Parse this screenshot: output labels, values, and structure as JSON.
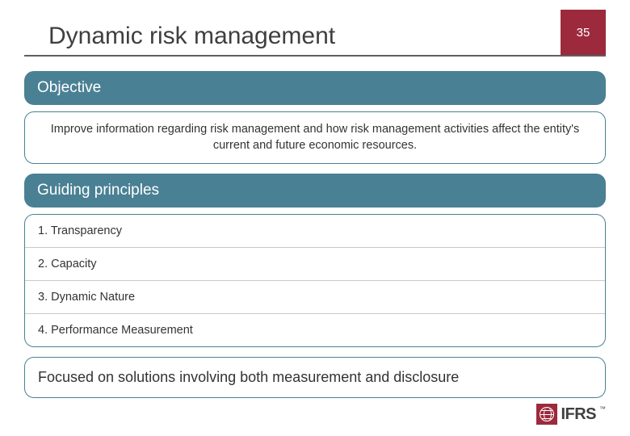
{
  "colors": {
    "accent_red": "#9c2a3c",
    "section_teal": "#4a8094",
    "border_teal": "#4a8094",
    "title_gray": "#3f3f3f",
    "text_gray": "#333333",
    "divider_gray": "#c9c9c9",
    "background": "#ffffff"
  },
  "header": {
    "title": "Dynamic risk management",
    "page_number": "35"
  },
  "sections": {
    "objective": {
      "label": "Objective",
      "body": "Improve information regarding risk management and how risk management activities affect the entity's current and future economic resources."
    },
    "guiding": {
      "label": "Guiding principles",
      "items": [
        "1.  Transparency",
        "2.  Capacity",
        "3.  Dynamic Nature",
        "4.  Performance Measurement"
      ]
    },
    "focus": {
      "body": "Focused on solutions involving both measurement and disclosure"
    }
  },
  "footer": {
    "logo_text": "IFRS",
    "trademark": "™"
  },
  "typography": {
    "title_fontsize": 30,
    "section_header_fontsize": 19,
    "body_fontsize": 14.5,
    "focus_fontsize": 18,
    "logo_fontsize": 20
  }
}
